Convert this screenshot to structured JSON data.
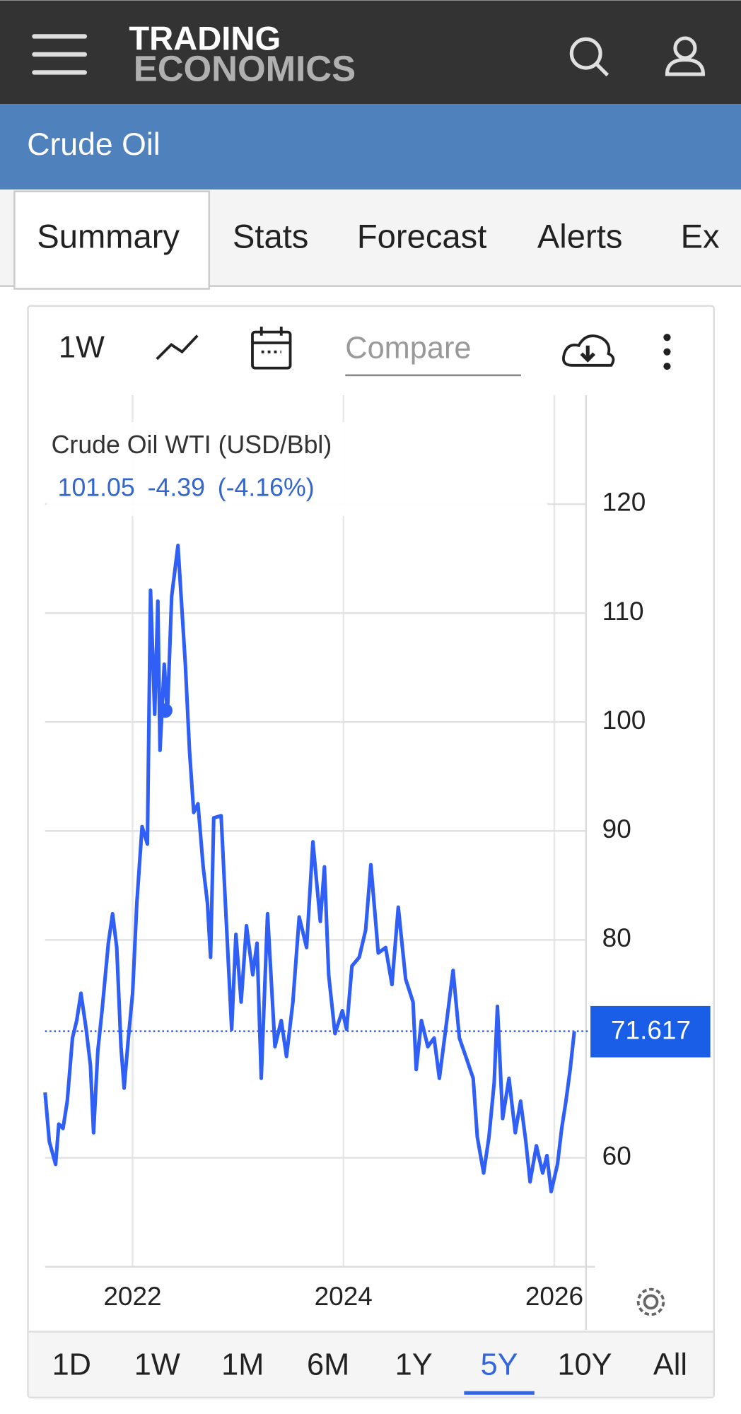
{
  "header": {
    "logo_top": "TRADING",
    "logo_bottom": "ECONOMICS",
    "page_title": "Crude Oil"
  },
  "tabs": [
    "Summary",
    "Stats",
    "Forecast",
    "Alerts",
    "Ex"
  ],
  "toolbar": {
    "period": "1W",
    "compare_placeholder": "Compare"
  },
  "ranges": [
    "1D",
    "1W",
    "1M",
    "6M",
    "1Y",
    "5Y",
    "10Y",
    "All"
  ],
  "active_range_index": 5,
  "chart_data": {
    "type": "line",
    "series": [
      {
        "name": "Crude Oil WTI (USD/Bbl)",
        "color": "#2f5ff5",
        "values": [
          66,
          61.5,
          59.4,
          63.1,
          62.7,
          65.2,
          71,
          72.6,
          75.1,
          71.8,
          68.5,
          62.3,
          69.8,
          73.5,
          79.7,
          82.4,
          79.3,
          70.2,
          66.4,
          71,
          75.1,
          83.4,
          90.4,
          88.8,
          112.1,
          100.7,
          111.1,
          97.4,
          105.3,
          100.7,
          111.5,
          116.2,
          105.3,
          97.4,
          91.7,
          92.5,
          86.7,
          83.4,
          78.4,
          91.2,
          91.4,
          83.4,
          71.8,
          80.5,
          74.3,
          81.3,
          76.8,
          79.7,
          67.3,
          82.4,
          70.2,
          72.6,
          69.3,
          74.3,
          82.1,
          79.3,
          89,
          81.7,
          86.7,
          76.8,
          71.4,
          73.5,
          71.8,
          77.6,
          78.4,
          80.9,
          86.9,
          78.8,
          79.3,
          75.9,
          83,
          76.4,
          74.3,
          68.1,
          72.6,
          70.2,
          71,
          67.3,
          71.8,
          77.2,
          71,
          69.3,
          67.3,
          61.9,
          58.6,
          61.9,
          66.9,
          73.9,
          63.6,
          67.3,
          62.3,
          65.2,
          61.5,
          57.8,
          61.1,
          58.6,
          60.2,
          56.9,
          59.4,
          62.7,
          65.2,
          68.1,
          71.617
        ]
      }
    ],
    "x": [
      2021.17,
      2021.21,
      2021.27,
      2021.3,
      2021.34,
      2021.38,
      2021.43,
      2021.47,
      2021.51,
      2021.56,
      2021.6,
      2021.63,
      2021.67,
      2021.71,
      2021.77,
      2021.81,
      2021.85,
      2021.89,
      2021.92,
      2021.96,
      2022.0,
      2022.04,
      2022.09,
      2022.14,
      2022.17,
      2022.21,
      2022.24,
      2022.26,
      2022.3,
      2022.33,
      2022.37,
      2022.43,
      2022.5,
      2022.54,
      2022.58,
      2022.62,
      2022.67,
      2022.71,
      2022.74,
      2022.77,
      2022.84,
      2022.88,
      2022.94,
      2022.98,
      2023.03,
      2023.08,
      2023.14,
      2023.18,
      2023.22,
      2023.28,
      2023.35,
      2023.41,
      2023.46,
      2023.52,
      2023.58,
      2023.65,
      2023.71,
      2023.78,
      2023.82,
      2023.86,
      2023.92,
      2023.99,
      2024.03,
      2024.08,
      2024.15,
      2024.21,
      2024.26,
      2024.33,
      2024.4,
      2024.46,
      2024.52,
      2024.59,
      2024.66,
      2024.69,
      2024.74,
      2024.8,
      2024.86,
      2024.91,
      2024.97,
      2025.04,
      2025.1,
      2025.16,
      2025.23,
      2025.27,
      2025.33,
      2025.38,
      2025.43,
      2025.46,
      2025.51,
      2025.57,
      2025.63,
      2025.68,
      2025.73,
      2025.77,
      2025.83,
      2025.89,
      2025.93,
      2025.97,
      2026.03,
      2026.07,
      2026.11,
      2026.15,
      2026.19
    ],
    "xlim": [
      2021.17,
      2026.3
    ],
    "xticks": [
      2022,
      2024,
      2026
    ],
    "ylim": [
      50,
      130
    ],
    "yticks": [
      60,
      80,
      90,
      100,
      110,
      120
    ],
    "grid": true,
    "y_axis_side": "right",
    "hover": {
      "x": 2022.31,
      "value": 101.05,
      "change": -4.39,
      "change_pct": "(-4.16%)"
    }
  }
}
